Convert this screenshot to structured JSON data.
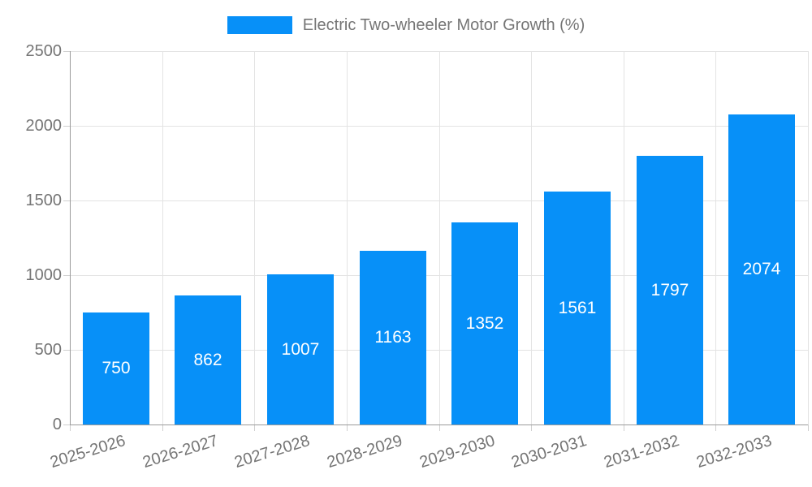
{
  "legend": {
    "label": "Electric Two-wheeler Motor Growth (%)"
  },
  "colors": {
    "bar": "#0790f8",
    "axis_text": "#757575",
    "grid": "#e3e3e3",
    "axis_line": "#9a9a9a",
    "value_label": "#ffffff",
    "background": "#ffffff"
  },
  "chart_data": {
    "type": "bar",
    "title": "Electric Two-wheeler Motor Growth (%)",
    "categories": [
      "2025-2026",
      "2026-2027",
      "2027-2028",
      "2028-2029",
      "2029-2030",
      "2030-2031",
      "2031-2032",
      "2032-2033"
    ],
    "series": [
      {
        "name": "Electric Two-wheeler Motor Growth (%)",
        "values": [
          750,
          862,
          1007,
          1163,
          1352,
          1561,
          1797,
          2074
        ]
      }
    ],
    "value_labels_shown": true,
    "xlabel": "",
    "ylabel": "",
    "ylim": [
      0,
      2500
    ],
    "yticks": [
      0,
      500,
      1000,
      1500,
      2000,
      2500
    ],
    "grid": true,
    "legend_position": "top",
    "x_label_rotation_deg": -17
  }
}
